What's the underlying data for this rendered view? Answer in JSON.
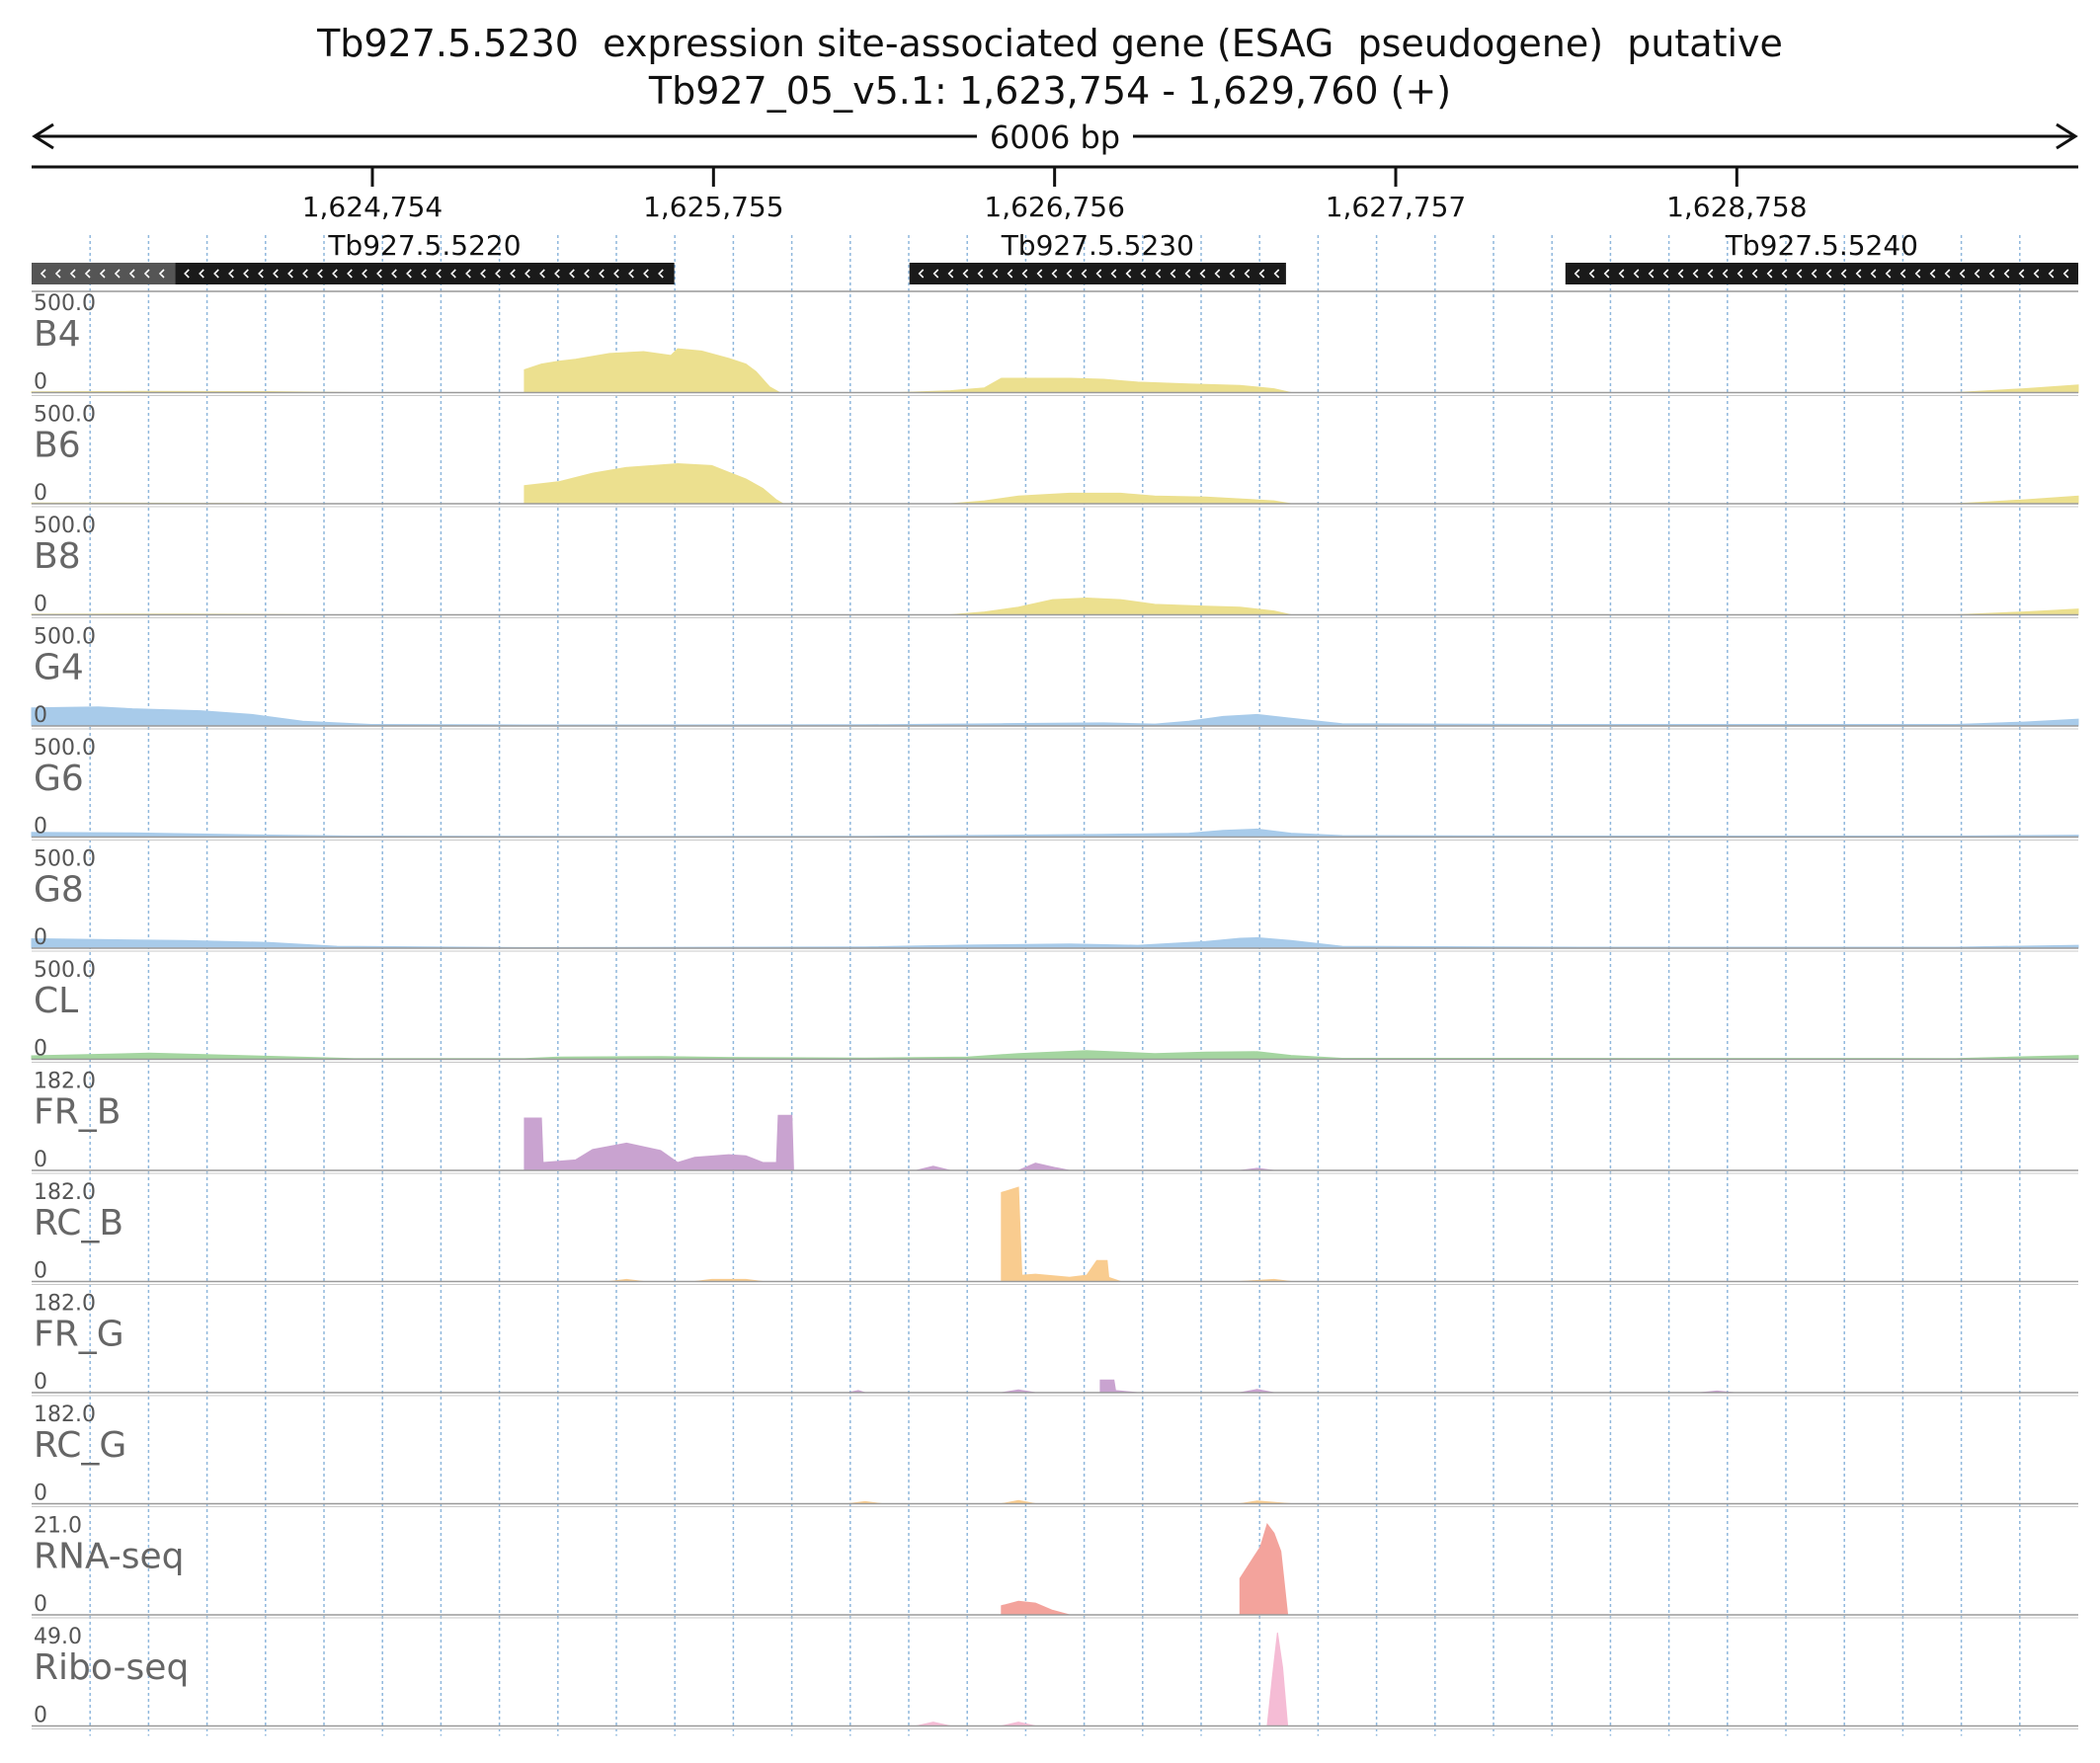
{
  "title": {
    "gene_line": "Tb927.5.5230  expression site-associated gene (ESAG  pseudogene)  putative",
    "location_line": "Tb927_05_v5.1: 1,623,754 - 1,629,760 (+)"
  },
  "scale_bar": {
    "label": "6006 bp"
  },
  "chart_data": {
    "type": "area",
    "title": "Tb927.5.5230  expression site-associated gene (ESAG  pseudogene)  putative",
    "subtitle": "Tb927_05_v5.1: 1,623,754 - 1,629,760 (+)",
    "xlim": [
      1623754,
      1629760
    ],
    "x_ticks": [
      1624754,
      1625755,
      1626756,
      1627757,
      1628758
    ],
    "x_tick_labels": [
      "1,624,754",
      "1,625,755",
      "1,626,756",
      "1,627,757",
      "1,628,758"
    ],
    "grid": true,
    "genes": [
      {
        "name": "",
        "start": 1623754,
        "end": 1624175,
        "strand": "-",
        "color": "#555555"
      },
      {
        "name": "Tb927.5.5220",
        "start": 1624175,
        "end": 1625640,
        "strand": "-",
        "color": "#1a1a1a"
      },
      {
        "name": "Tb927.5.5230",
        "start": 1626330,
        "end": 1627435,
        "strand": "-",
        "color": "#1a1a1a"
      },
      {
        "name": "Tb927.5.5240",
        "start": 1628255,
        "end": 1629760,
        "strand": "-",
        "color": "#1a1a1a"
      }
    ],
    "tracks": [
      {
        "name": "B4",
        "max": "500.0",
        "min": "0",
        "color": "#ece08f",
        "ylim": [
          0,
          500
        ],
        "points": [
          [
            1623754,
            4
          ],
          [
            1624050,
            6
          ],
          [
            1624450,
            5
          ],
          [
            1624700,
            0
          ],
          [
            1625200,
            0
          ],
          [
            1625200,
            120
          ],
          [
            1625250,
            150
          ],
          [
            1625300,
            165
          ],
          [
            1625350,
            175
          ],
          [
            1625450,
            205
          ],
          [
            1625550,
            215
          ],
          [
            1625630,
            195
          ],
          [
            1625650,
            230
          ],
          [
            1625720,
            218
          ],
          [
            1625800,
            180
          ],
          [
            1625850,
            150
          ],
          [
            1625880,
            110
          ],
          [
            1625920,
            30
          ],
          [
            1625950,
            0
          ],
          [
            1626300,
            0
          ],
          [
            1626450,
            10
          ],
          [
            1626550,
            25
          ],
          [
            1626600,
            75
          ],
          [
            1626800,
            75
          ],
          [
            1626900,
            70
          ],
          [
            1627000,
            55
          ],
          [
            1627150,
            45
          ],
          [
            1627300,
            38
          ],
          [
            1627400,
            20
          ],
          [
            1627450,
            0
          ],
          [
            1629400,
            0
          ],
          [
            1629600,
            20
          ],
          [
            1629760,
            40
          ]
        ]
      },
      {
        "name": "B6",
        "max": "500.0",
        "min": "0",
        "color": "#ece08f",
        "ylim": [
          0,
          500
        ],
        "points": [
          [
            1623754,
            4
          ],
          [
            1624300,
            2
          ],
          [
            1624500,
            0
          ],
          [
            1625200,
            0
          ],
          [
            1625200,
            95
          ],
          [
            1625300,
            115
          ],
          [
            1625400,
            160
          ],
          [
            1625500,
            190
          ],
          [
            1625650,
            210
          ],
          [
            1625750,
            200
          ],
          [
            1625800,
            165
          ],
          [
            1625850,
            130
          ],
          [
            1625900,
            80
          ],
          [
            1625940,
            20
          ],
          [
            1625960,
            0
          ],
          [
            1626450,
            0
          ],
          [
            1626550,
            15
          ],
          [
            1626650,
            40
          ],
          [
            1626800,
            55
          ],
          [
            1626950,
            55
          ],
          [
            1627050,
            40
          ],
          [
            1627200,
            35
          ],
          [
            1627400,
            15
          ],
          [
            1627450,
            0
          ],
          [
            1629400,
            0
          ],
          [
            1629600,
            20
          ],
          [
            1629760,
            40
          ]
        ]
      },
      {
        "name": "B8",
        "max": "500.0",
        "min": "0",
        "color": "#ece08f",
        "ylim": [
          0,
          500
        ],
        "points": [
          [
            1623754,
            3
          ],
          [
            1624200,
            4
          ],
          [
            1624450,
            2
          ],
          [
            1624600,
            0
          ],
          [
            1626450,
            0
          ],
          [
            1626550,
            15
          ],
          [
            1626650,
            40
          ],
          [
            1626750,
            80
          ],
          [
            1626850,
            88
          ],
          [
            1626950,
            80
          ],
          [
            1627050,
            55
          ],
          [
            1627200,
            45
          ],
          [
            1627300,
            40
          ],
          [
            1627400,
            20
          ],
          [
            1627450,
            0
          ],
          [
            1629400,
            0
          ],
          [
            1629600,
            15
          ],
          [
            1629760,
            30
          ]
        ]
      },
      {
        "name": "G4",
        "max": "500.0",
        "min": "0",
        "color": "#a8cbea",
        "ylim": [
          0,
          500
        ],
        "points": [
          [
            1623754,
            95
          ],
          [
            1623950,
            100
          ],
          [
            1624050,
            90
          ],
          [
            1624250,
            80
          ],
          [
            1624400,
            60
          ],
          [
            1624550,
            25
          ],
          [
            1624750,
            8
          ],
          [
            1625200,
            5
          ],
          [
            1626200,
            6
          ],
          [
            1626600,
            12
          ],
          [
            1626900,
            16
          ],
          [
            1627050,
            10
          ],
          [
            1627150,
            25
          ],
          [
            1627250,
            50
          ],
          [
            1627350,
            60
          ],
          [
            1627450,
            40
          ],
          [
            1627600,
            12
          ],
          [
            1628200,
            8
          ],
          [
            1629400,
            8
          ],
          [
            1629600,
            20
          ],
          [
            1629760,
            35
          ]
        ]
      },
      {
        "name": "G6",
        "max": "500.0",
        "min": "0",
        "color": "#a8cbea",
        "ylim": [
          0,
          500
        ],
        "points": [
          [
            1623754,
            25
          ],
          [
            1624050,
            22
          ],
          [
            1624400,
            12
          ],
          [
            1624700,
            5
          ],
          [
            1625500,
            3
          ],
          [
            1626200,
            4
          ],
          [
            1626600,
            10
          ],
          [
            1626900,
            14
          ],
          [
            1627150,
            20
          ],
          [
            1627250,
            35
          ],
          [
            1627350,
            42
          ],
          [
            1627450,
            20
          ],
          [
            1627600,
            8
          ],
          [
            1628300,
            5
          ],
          [
            1629400,
            5
          ],
          [
            1629760,
            10
          ]
        ]
      },
      {
        "name": "G8",
        "max": "500.0",
        "min": "0",
        "color": "#a8cbea",
        "ylim": [
          0,
          500
        ],
        "points": [
          [
            1623754,
            50
          ],
          [
            1623950,
            45
          ],
          [
            1624200,
            40
          ],
          [
            1624450,
            30
          ],
          [
            1624650,
            10
          ],
          [
            1625200,
            3
          ],
          [
            1626200,
            6
          ],
          [
            1626500,
            16
          ],
          [
            1626800,
            22
          ],
          [
            1627000,
            15
          ],
          [
            1627200,
            35
          ],
          [
            1627300,
            52
          ],
          [
            1627350,
            55
          ],
          [
            1627450,
            40
          ],
          [
            1627600,
            10
          ],
          [
            1628300,
            5
          ],
          [
            1629400,
            5
          ],
          [
            1629760,
            15
          ]
        ]
      },
      {
        "name": "CL",
        "max": "500.0",
        "min": "0",
        "color": "#a4d5a0",
        "ylim": [
          0,
          500
        ],
        "points": [
          [
            1623754,
            18
          ],
          [
            1624100,
            32
          ],
          [
            1624400,
            18
          ],
          [
            1624700,
            4
          ],
          [
            1625200,
            4
          ],
          [
            1625300,
            12
          ],
          [
            1625600,
            14
          ],
          [
            1625800,
            10
          ],
          [
            1626200,
            6
          ],
          [
            1626500,
            12
          ],
          [
            1626650,
            30
          ],
          [
            1626850,
            45
          ],
          [
            1627050,
            30
          ],
          [
            1627200,
            38
          ],
          [
            1627350,
            40
          ],
          [
            1627450,
            20
          ],
          [
            1627600,
            5
          ],
          [
            1629400,
            4
          ],
          [
            1629760,
            20
          ]
        ]
      },
      {
        "name": "FR_B",
        "max": "182.0",
        "min": "0",
        "color": "#c9a3d0",
        "ylim": [
          0,
          182
        ],
        "points": [
          [
            1623754,
            0
          ],
          [
            1625200,
            0
          ],
          [
            1625200,
            100
          ],
          [
            1625250,
            100
          ],
          [
            1625255,
            15
          ],
          [
            1625350,
            20
          ],
          [
            1625400,
            40
          ],
          [
            1625500,
            52
          ],
          [
            1625600,
            38
          ],
          [
            1625650,
            15
          ],
          [
            1625700,
            25
          ],
          [
            1625800,
            30
          ],
          [
            1625850,
            28
          ],
          [
            1625900,
            15
          ],
          [
            1625940,
            15
          ],
          [
            1625945,
            105
          ],
          [
            1625985,
            105
          ],
          [
            1625990,
            0
          ],
          [
            1626350,
            0
          ],
          [
            1626400,
            8
          ],
          [
            1626450,
            0
          ],
          [
            1626650,
            0
          ],
          [
            1626700,
            14
          ],
          [
            1626760,
            5
          ],
          [
            1626800,
            0
          ],
          [
            1627300,
            0
          ],
          [
            1627350,
            4
          ],
          [
            1627400,
            0
          ],
          [
            1629760,
            0
          ]
        ]
      },
      {
        "name": "RC_B",
        "max": "182.0",
        "min": "0",
        "color": "#f9cc8f",
        "ylim": [
          0,
          182
        ],
        "points": [
          [
            1623754,
            0
          ],
          [
            1625450,
            0
          ],
          [
            1625500,
            4
          ],
          [
            1625550,
            0
          ],
          [
            1625700,
            0
          ],
          [
            1625750,
            4
          ],
          [
            1625850,
            4
          ],
          [
            1625900,
            0
          ],
          [
            1626600,
            0
          ],
          [
            1626600,
            170
          ],
          [
            1626650,
            180
          ],
          [
            1626660,
            12
          ],
          [
            1626700,
            14
          ],
          [
            1626800,
            8
          ],
          [
            1626850,
            12
          ],
          [
            1626880,
            40
          ],
          [
            1626910,
            40
          ],
          [
            1626915,
            8
          ],
          [
            1626950,
            0
          ],
          [
            1627300,
            0
          ],
          [
            1627400,
            4
          ],
          [
            1627450,
            0
          ],
          [
            1629760,
            0
          ]
        ]
      },
      {
        "name": "FR_G",
        "max": "182.0",
        "min": "0",
        "color": "#c9a3d0",
        "ylim": [
          0,
          182
        ],
        "points": [
          [
            1623754,
            0
          ],
          [
            1626150,
            0
          ],
          [
            1626180,
            4
          ],
          [
            1626200,
            0
          ],
          [
            1626600,
            0
          ],
          [
            1626650,
            5
          ],
          [
            1626700,
            0
          ],
          [
            1626890,
            0
          ],
          [
            1626890,
            24
          ],
          [
            1626930,
            24
          ],
          [
            1626935,
            4
          ],
          [
            1627000,
            0
          ],
          [
            1627300,
            0
          ],
          [
            1627350,
            6
          ],
          [
            1627400,
            0
          ],
          [
            1628650,
            0
          ],
          [
            1628700,
            3
          ],
          [
            1628750,
            0
          ],
          [
            1629760,
            0
          ]
        ]
      },
      {
        "name": "RC_G",
        "max": "182.0",
        "min": "0",
        "color": "#f9cc8f",
        "ylim": [
          0,
          182
        ],
        "points": [
          [
            1623754,
            0
          ],
          [
            1626150,
            0
          ],
          [
            1626200,
            4
          ],
          [
            1626250,
            0
          ],
          [
            1626600,
            0
          ],
          [
            1626650,
            6
          ],
          [
            1626700,
            0
          ],
          [
            1627300,
            0
          ],
          [
            1627350,
            5
          ],
          [
            1627450,
            0
          ],
          [
            1629760,
            0
          ]
        ]
      },
      {
        "name": "RNA-seq",
        "max": "21.0",
        "min": "0",
        "color": "#f3a39c",
        "ylim": [
          0,
          21
        ],
        "points": [
          [
            1623754,
            0
          ],
          [
            1626600,
            0
          ],
          [
            1626600,
            2
          ],
          [
            1626650,
            3
          ],
          [
            1626700,
            2.6
          ],
          [
            1626750,
            1
          ],
          [
            1626800,
            0
          ],
          [
            1627300,
            0
          ],
          [
            1627300,
            8
          ],
          [
            1627360,
            15
          ],
          [
            1627380,
            20
          ],
          [
            1627400,
            18
          ],
          [
            1627420,
            14
          ],
          [
            1627440,
            0
          ],
          [
            1629760,
            0
          ]
        ]
      },
      {
        "name": "Ribo-seq",
        "max": "49.0",
        "min": "0",
        "color": "#f5bcd5",
        "ylim": [
          0,
          49
        ],
        "points": [
          [
            1623754,
            0
          ],
          [
            1626350,
            0
          ],
          [
            1626400,
            2
          ],
          [
            1626450,
            0
          ],
          [
            1626600,
            0
          ],
          [
            1626650,
            2
          ],
          [
            1626700,
            0
          ],
          [
            1627380,
            0
          ],
          [
            1627395,
            25
          ],
          [
            1627410,
            48
          ],
          [
            1627425,
            30
          ],
          [
            1627440,
            0
          ],
          [
            1629760,
            0
          ]
        ]
      }
    ]
  }
}
